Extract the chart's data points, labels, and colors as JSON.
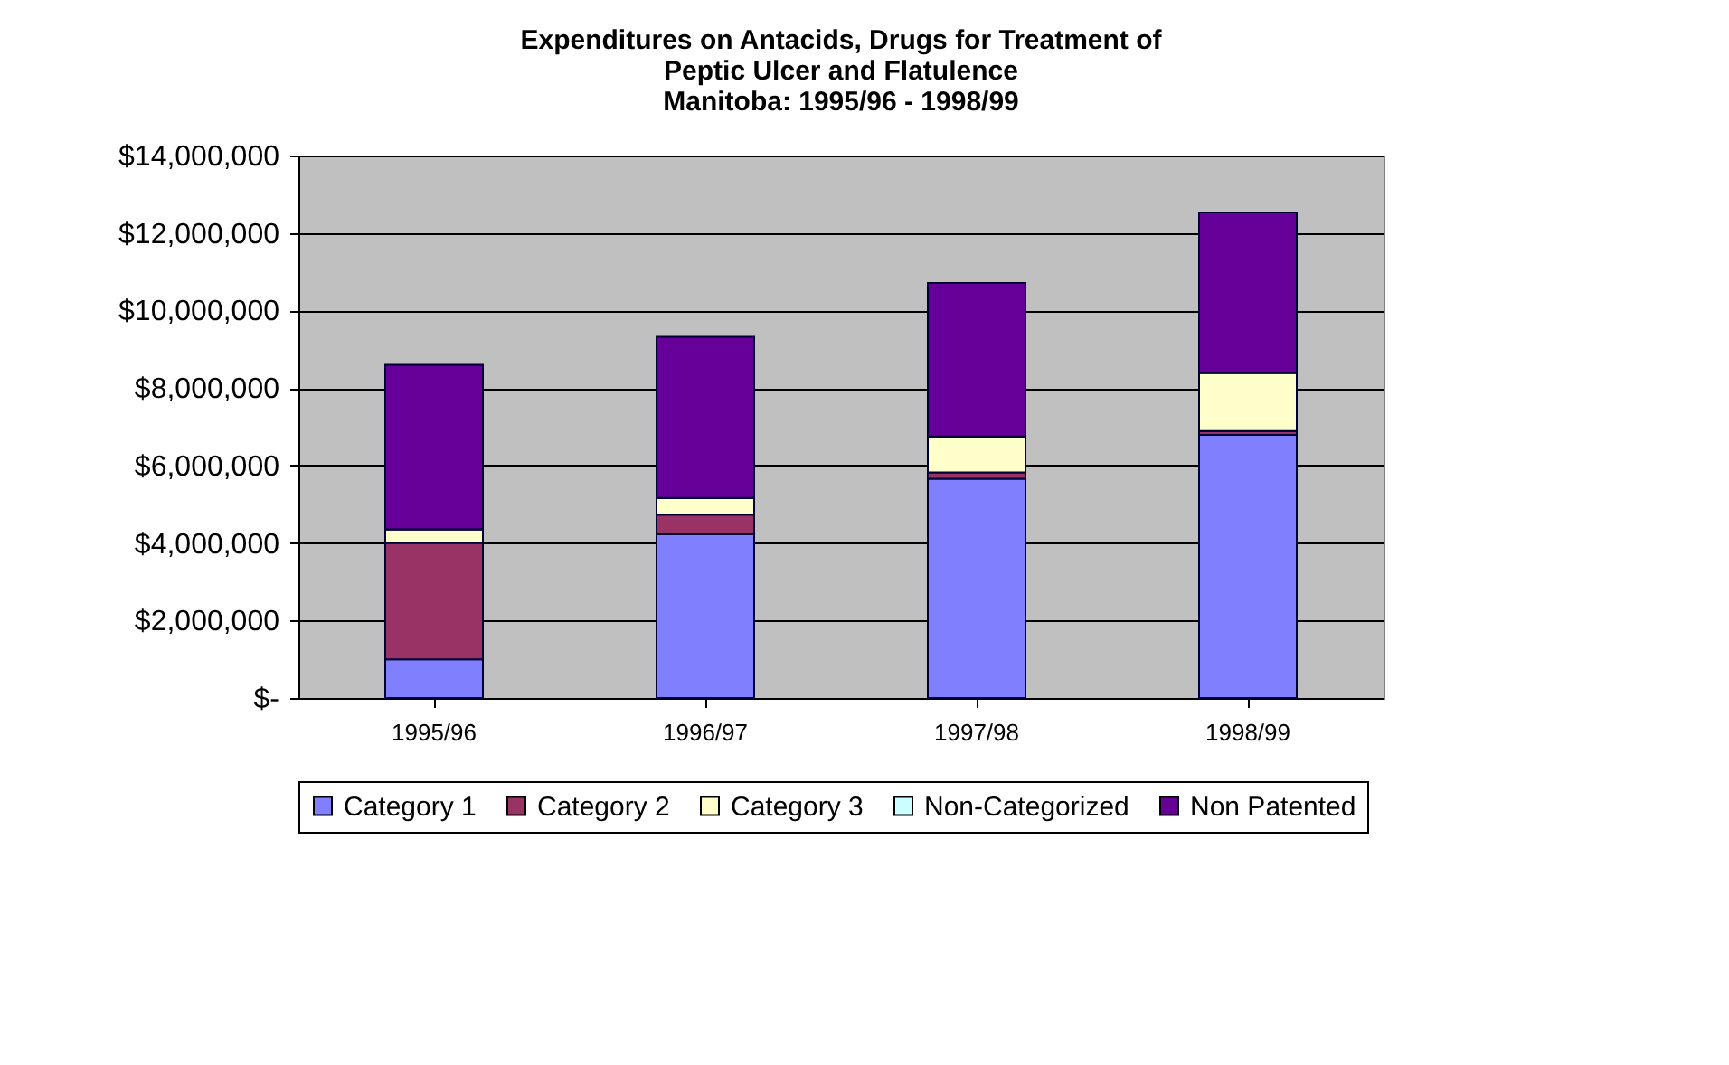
{
  "chart_data": {
    "type": "bar",
    "title": "Expenditures on Antacids, Drugs for Treatment of Peptic Ulcer and Flatulence",
    "subtitle": "Manitoba: 1995/96 - 1998/99",
    "categories": [
      "1995/96",
      "1996/97",
      "1997/98",
      "1998/99"
    ],
    "stacked": true,
    "series": [
      {
        "name": "Category 1",
        "color": "#8080ff",
        "values": [
          1000000,
          4230000,
          5660000,
          6790000
        ]
      },
      {
        "name": "Category 2",
        "color": "#993366",
        "values": [
          3000000,
          500000,
          160000,
          100000
        ]
      },
      {
        "name": "Category 3",
        "color": "#ffffcc",
        "values": [
          350000,
          430000,
          930000,
          1500000
        ]
      },
      {
        "name": "Non-Categorized",
        "color": "#ccffff",
        "values": [
          0,
          0,
          0,
          0
        ]
      },
      {
        "name": "Non Patented",
        "color": "#660099",
        "values": [
          4250000,
          4160000,
          3960000,
          4140000
        ]
      }
    ],
    "ylim": [
      0,
      14000000
    ],
    "yticks": [
      {
        "value": 0,
        "label": "$-"
      },
      {
        "value": 2000000,
        "label": "$2,000,000"
      },
      {
        "value": 4000000,
        "label": "$4,000,000"
      },
      {
        "value": 6000000,
        "label": "$6,000,000"
      },
      {
        "value": 8000000,
        "label": "$8,000,000"
      },
      {
        "value": 10000000,
        "label": "$10,000,000"
      },
      {
        "value": 12000000,
        "label": "$12,000,000"
      },
      {
        "value": 14000000,
        "label": "$14,000,000"
      }
    ],
    "grid": "y",
    "legend": "bottom"
  }
}
